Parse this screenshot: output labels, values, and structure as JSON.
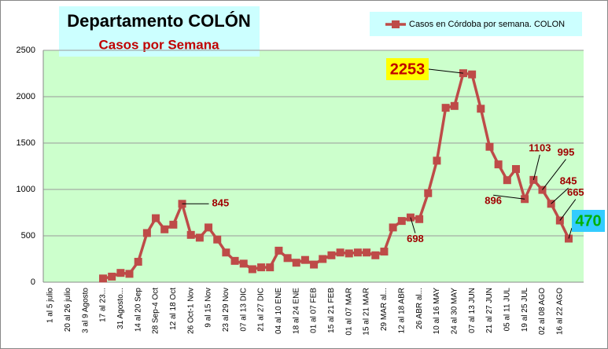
{
  "chart_data": {
    "type": "line",
    "title": "Departamento COLÓN",
    "subtitle": "Casos por Semana",
    "categories": [
      "1 al 5 julio",
      null,
      "20 al 26 julio",
      null,
      "3 al 9 Agosto",
      null,
      "17 al 23...",
      null,
      "31 Agosto...",
      null,
      "14 al 20 Sep",
      null,
      "28 Sep-4 Oct",
      null,
      "12 al 18 Oct",
      null,
      "26 Oct-1 Nov",
      null,
      "9 al 15 Nov",
      null,
      "23 al 29 Nov",
      null,
      "07 al 13 DIC",
      null,
      "21 al 27 DIC",
      null,
      "04 al 10 ENE",
      null,
      "18 al 24 ENE",
      null,
      "01 al 07 FEB",
      null,
      "15 al 21 FEB",
      null,
      "01 al 07 MAR",
      null,
      "15 al 21 MAR",
      null,
      "29 MAR al...",
      null,
      "12 al 18 ABR",
      null,
      "26 ABR al...",
      null,
      "10 al 16 MAY",
      null,
      "24 al 30 MAY",
      null,
      "07 al 13 JUN",
      null,
      "21 al 27 JUN",
      null,
      "05 al 11 JUL",
      null,
      "19 al 25 JUL",
      null,
      "02 al 08 AGO",
      null,
      "16 al 22 AGO",
      null
    ],
    "series": [
      {
        "name": "Casos en Córdoba por semana. COLON",
        "color": "#be4b48",
        "values": [
          null,
          null,
          null,
          null,
          null,
          null,
          40,
          60,
          100,
          90,
          220,
          530,
          690,
          570,
          620,
          845,
          510,
          480,
          590,
          460,
          320,
          230,
          200,
          140,
          160,
          160,
          340,
          260,
          210,
          240,
          190,
          250,
          290,
          320,
          310,
          320,
          320,
          290,
          330,
          590,
          660,
          698,
          680,
          960,
          1310,
          1880,
          1900,
          2253,
          2240,
          1870,
          1460,
          1270,
          1100,
          1220,
          896,
          1103,
          995,
          845,
          665,
          470
        ]
      }
    ],
    "data_labels": [
      15,
      41,
      47,
      54,
      55,
      56,
      57,
      58,
      59
    ],
    "ylim": [
      0,
      2500
    ],
    "yticks": [
      0,
      500,
      1000,
      1500,
      2000,
      2500
    ],
    "grid": true,
    "legend": "top-right"
  }
}
